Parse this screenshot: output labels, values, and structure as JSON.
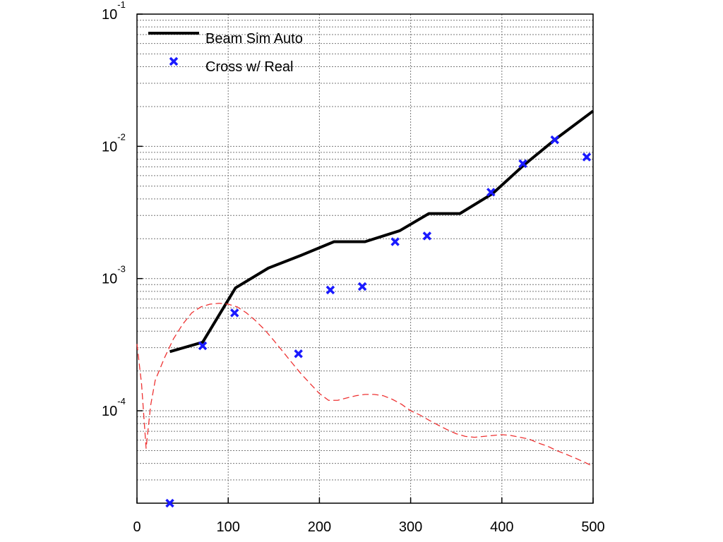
{
  "chart_data": {
    "type": "line",
    "title": "",
    "xlabel": "",
    "ylabel": "",
    "xlim": [
      0,
      500
    ],
    "ylim": [
      2e-05,
      0.1
    ],
    "yscale": "log",
    "grid": true,
    "legend_placement": "top-left",
    "x_ticks": [
      "0",
      "100",
      "200",
      "300",
      "400",
      "500"
    ],
    "y_ticks": [
      {
        "base": "10",
        "exp": "-1",
        "value": 0.1
      },
      {
        "base": "10",
        "exp": "-2",
        "value": 0.01
      },
      {
        "base": "10",
        "exp": "-3",
        "value": 0.001
      },
      {
        "base": "10",
        "exp": "-4",
        "value": 0.0001
      }
    ],
    "series": [
      {
        "name": "Beam Sim Auto",
        "style": "line",
        "color": "#000000",
        "x": [
          36,
          72,
          108,
          144,
          180,
          216,
          250,
          288,
          320,
          354,
          390,
          424,
          460,
          500
        ],
        "y": [
          0.00028,
          0.00033,
          0.00085,
          0.0012,
          0.0015,
          0.0019,
          0.0019,
          0.0023,
          0.0031,
          0.0031,
          0.0044,
          0.0072,
          0.0115,
          0.0185
        ]
      },
      {
        "name": "Cross w/ Real",
        "style": "marker",
        "color": "#1a1aff",
        "x": [
          36,
          72,
          107,
          177,
          212,
          247,
          283,
          318,
          388,
          423,
          458,
          493
        ],
        "y": [
          2e-05,
          0.00031,
          0.00055,
          0.00027,
          0.00082,
          0.00087,
          0.0019,
          0.0021,
          0.0045,
          0.0074,
          0.0112,
          0.0083
        ]
      },
      {
        "style": "dashed",
        "color": "#ee3333",
        "x": [
          0,
          5,
          10,
          15,
          20,
          30,
          40,
          50,
          60,
          70,
          80,
          90,
          100,
          110,
          120,
          130,
          140,
          150,
          160,
          170,
          180,
          190,
          200,
          210,
          220,
          230,
          240,
          250,
          260,
          270,
          280,
          290,
          300,
          310,
          320,
          330,
          340,
          350,
          360,
          370,
          380,
          390,
          400,
          410,
          420,
          430,
          440,
          450,
          460,
          470,
          480,
          490,
          500
        ],
        "y": [
          0.00032,
          0.00016,
          5.2e-05,
          0.00011,
          0.00017,
          0.00025,
          0.00035,
          0.00045,
          0.00055,
          0.00061,
          0.00064,
          0.00065,
          0.00064,
          0.00061,
          0.00055,
          0.00048,
          0.00041,
          0.00034,
          0.00028,
          0.00023,
          0.00019,
          0.00016,
          0.000135,
          0.00012,
          0.00012,
          0.000125,
          0.00013,
          0.000133,
          0.000133,
          0.00013,
          0.000122,
          0.000112,
          0.0001,
          9.3e-05,
          8.5e-05,
          7.8e-05,
          7.2e-05,
          6.7e-05,
          6.4e-05,
          6.3e-05,
          6.4e-05,
          6.5e-05,
          6.6e-05,
          6.5e-05,
          6.3e-05,
          6.1e-05,
          5.7e-05,
          5.4e-05,
          5e-05,
          4.7e-05,
          4.4e-05,
          4.1e-05,
          3.8e-05
        ]
      }
    ]
  }
}
